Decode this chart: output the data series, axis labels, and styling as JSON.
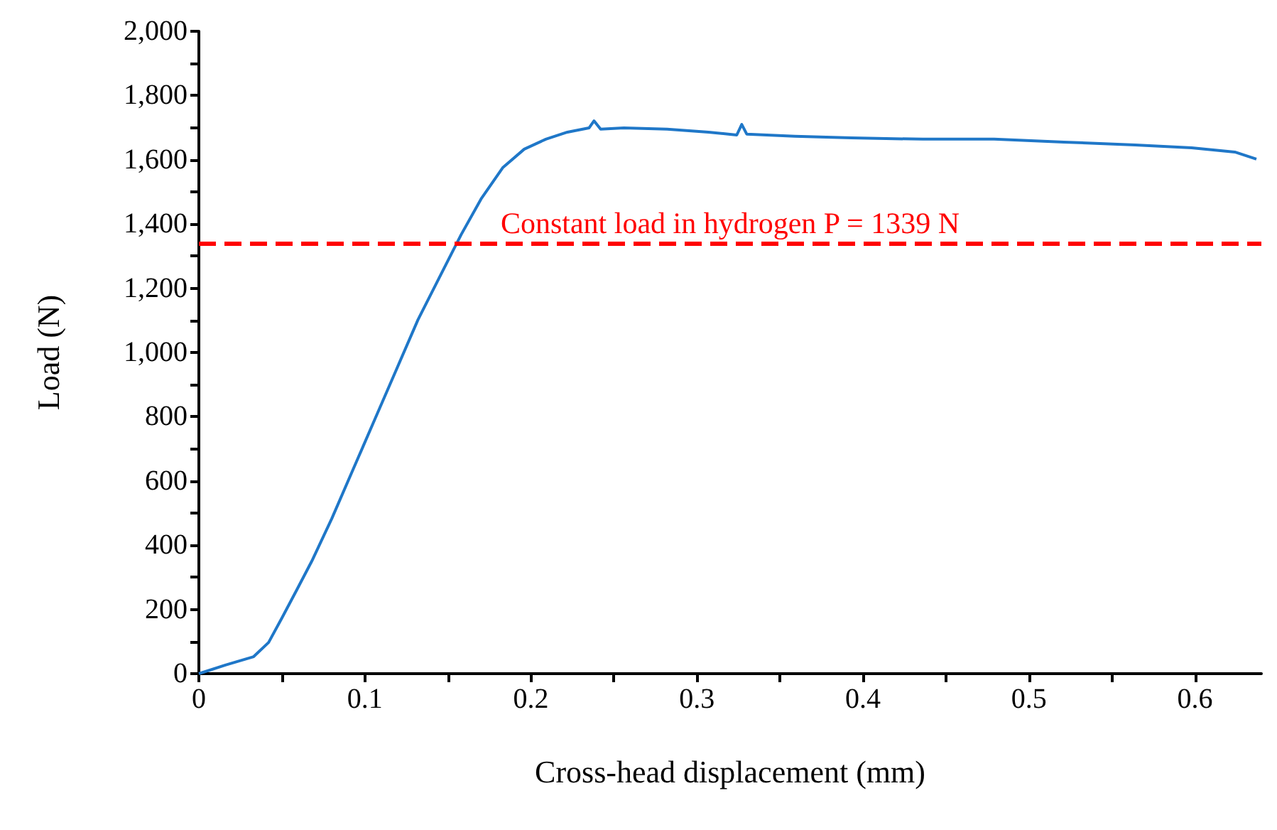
{
  "chart_data": {
    "type": "line",
    "xlabel": "Cross-head displacement (mm)",
    "ylabel": "Load (N)",
    "xlim": [
      0,
      0.64
    ],
    "xticks": [
      0,
      {
        "value": 0.05,
        "label": null
      },
      0.1,
      {
        "value": 0.15,
        "label": null
      },
      0.2,
      {
        "value": 0.25,
        "label": null
      },
      0.3,
      {
        "value": 0.35,
        "label": null
      },
      0.4,
      {
        "value": 0.45,
        "label": null
      },
      0.5,
      {
        "value": 0.55,
        "label": null
      },
      0.6
    ],
    "ylim": [
      0,
      2000
    ],
    "yticks": [
      0,
      {
        "value": 100,
        "label": null
      },
      200,
      {
        "value": 300,
        "label": null
      },
      400,
      {
        "value": 500,
        "label": null
      },
      600,
      {
        "value": 700,
        "label": null
      },
      800,
      {
        "value": 900,
        "label": null
      },
      {
        "value": 1000,
        "label": "1,000"
      },
      {
        "value": 1100,
        "label": null
      },
      {
        "value": 1200,
        "label": "1,200"
      },
      {
        "value": 1300,
        "label": null
      },
      {
        "value": 1400,
        "label": "1,400"
      },
      {
        "value": 1500,
        "label": null
      },
      {
        "value": 1600,
        "label": "1,600"
      },
      {
        "value": 1700,
        "label": null
      },
      {
        "value": 1800,
        "label": "1,800"
      },
      {
        "value": 1900,
        "label": null
      },
      {
        "value": 2000,
        "label": "2,000"
      }
    ],
    "grid": false,
    "marker": "none",
    "line_style": "solid",
    "series": [
      {
        "color": "#1f77c8",
        "x": [
          0,
          0.016,
          0.033,
          0.042,
          0.05,
          0.059,
          0.068,
          0.08,
          0.093,
          0.106,
          0.119,
          0.132,
          0.145,
          0.158,
          0.17,
          0.183,
          0.196,
          0.209,
          0.222,
          0.235,
          0.238,
          0.242,
          0.256,
          0.282,
          0.307,
          0.324,
          0.327,
          0.33,
          0.359,
          0.393,
          0.436,
          0.479,
          0.521,
          0.564,
          0.598,
          0.624,
          0.637
        ],
        "values": [
          0,
          27,
          53,
          97,
          173,
          261,
          350,
          482,
          637,
          792,
          947,
          1102,
          1235,
          1367,
          1478,
          1575,
          1633,
          1664,
          1686,
          1699,
          1721,
          1695,
          1699,
          1695,
          1686,
          1677,
          1710,
          1680,
          1673,
          1668,
          1664,
          1664,
          1655,
          1646,
          1637,
          1624,
          1602
        ]
      }
    ],
    "ref_lines": [
      {
        "axis": "y",
        "value": 1339,
        "label": "Constant load in hydrogen P = 1339 N",
        "color": "#ff0000",
        "line_style": "dashed"
      }
    ]
  }
}
